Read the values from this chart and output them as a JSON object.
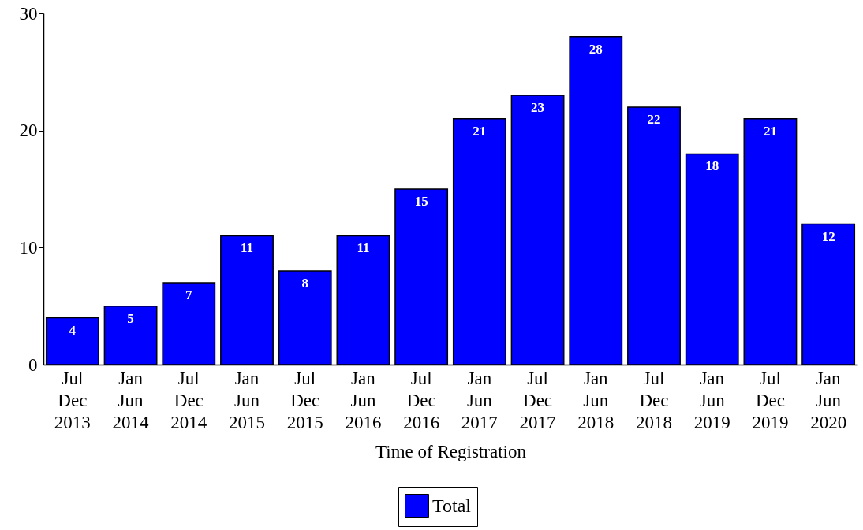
{
  "chart_data": {
    "type": "bar",
    "xlabel": "Time of Registration",
    "categories": [
      "Jul\nDec\n2013",
      "Jan\nJun\n2014",
      "Jul\nDec\n2014",
      "Jan\nJun\n2015",
      "Jul\nDec\n2015",
      "Jan\nJun\n2016",
      "Jul\nDec\n2016",
      "Jan\nJun\n2017",
      "Jul\nDec\n2017",
      "Jan\nJun\n2018",
      "Jul\nDec\n2018",
      "Jan\nJun\n2019",
      "Jul\nDec\n2019",
      "Jan\nJun\n2020"
    ],
    "series": [
      {
        "name": "Total",
        "color": "#0000ff",
        "values": [
          4,
          5,
          7,
          11,
          8,
          11,
          15,
          21,
          23,
          28,
          22,
          18,
          21,
          12
        ]
      }
    ],
    "ylim": [
      0,
      30
    ],
    "yticks": [
      0,
      10,
      20,
      30
    ],
    "grid": false,
    "legend": "bottom",
    "data_labels": true
  }
}
